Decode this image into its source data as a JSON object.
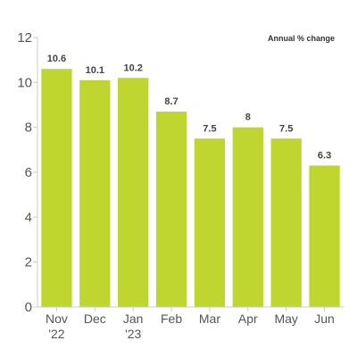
{
  "chart_data": {
    "type": "bar",
    "title": "",
    "xlabel": "",
    "ylabel": "",
    "annotation": "Annual % change",
    "categories": [
      [
        "Nov",
        "'22"
      ],
      [
        "Dec"
      ],
      [
        "Jan",
        "'23"
      ],
      [
        "Feb"
      ],
      [
        "Mar"
      ],
      [
        "Apr"
      ],
      [
        "May"
      ],
      [
        "Jun"
      ]
    ],
    "values": [
      10.6,
      10.1,
      10.2,
      8.7,
      7.5,
      8,
      7.5,
      6.3
    ],
    "data_labels": [
      "10.6",
      "10.1",
      "10.2",
      "8.7",
      "7.5",
      "8",
      "7.5",
      "6.3"
    ],
    "yticks": [
      0,
      2,
      4,
      6,
      8,
      10,
      12
    ],
    "ylim": [
      0,
      12
    ],
    "grid": false,
    "bar_color": "#bfd630",
    "axis_color": "#cccccc"
  }
}
